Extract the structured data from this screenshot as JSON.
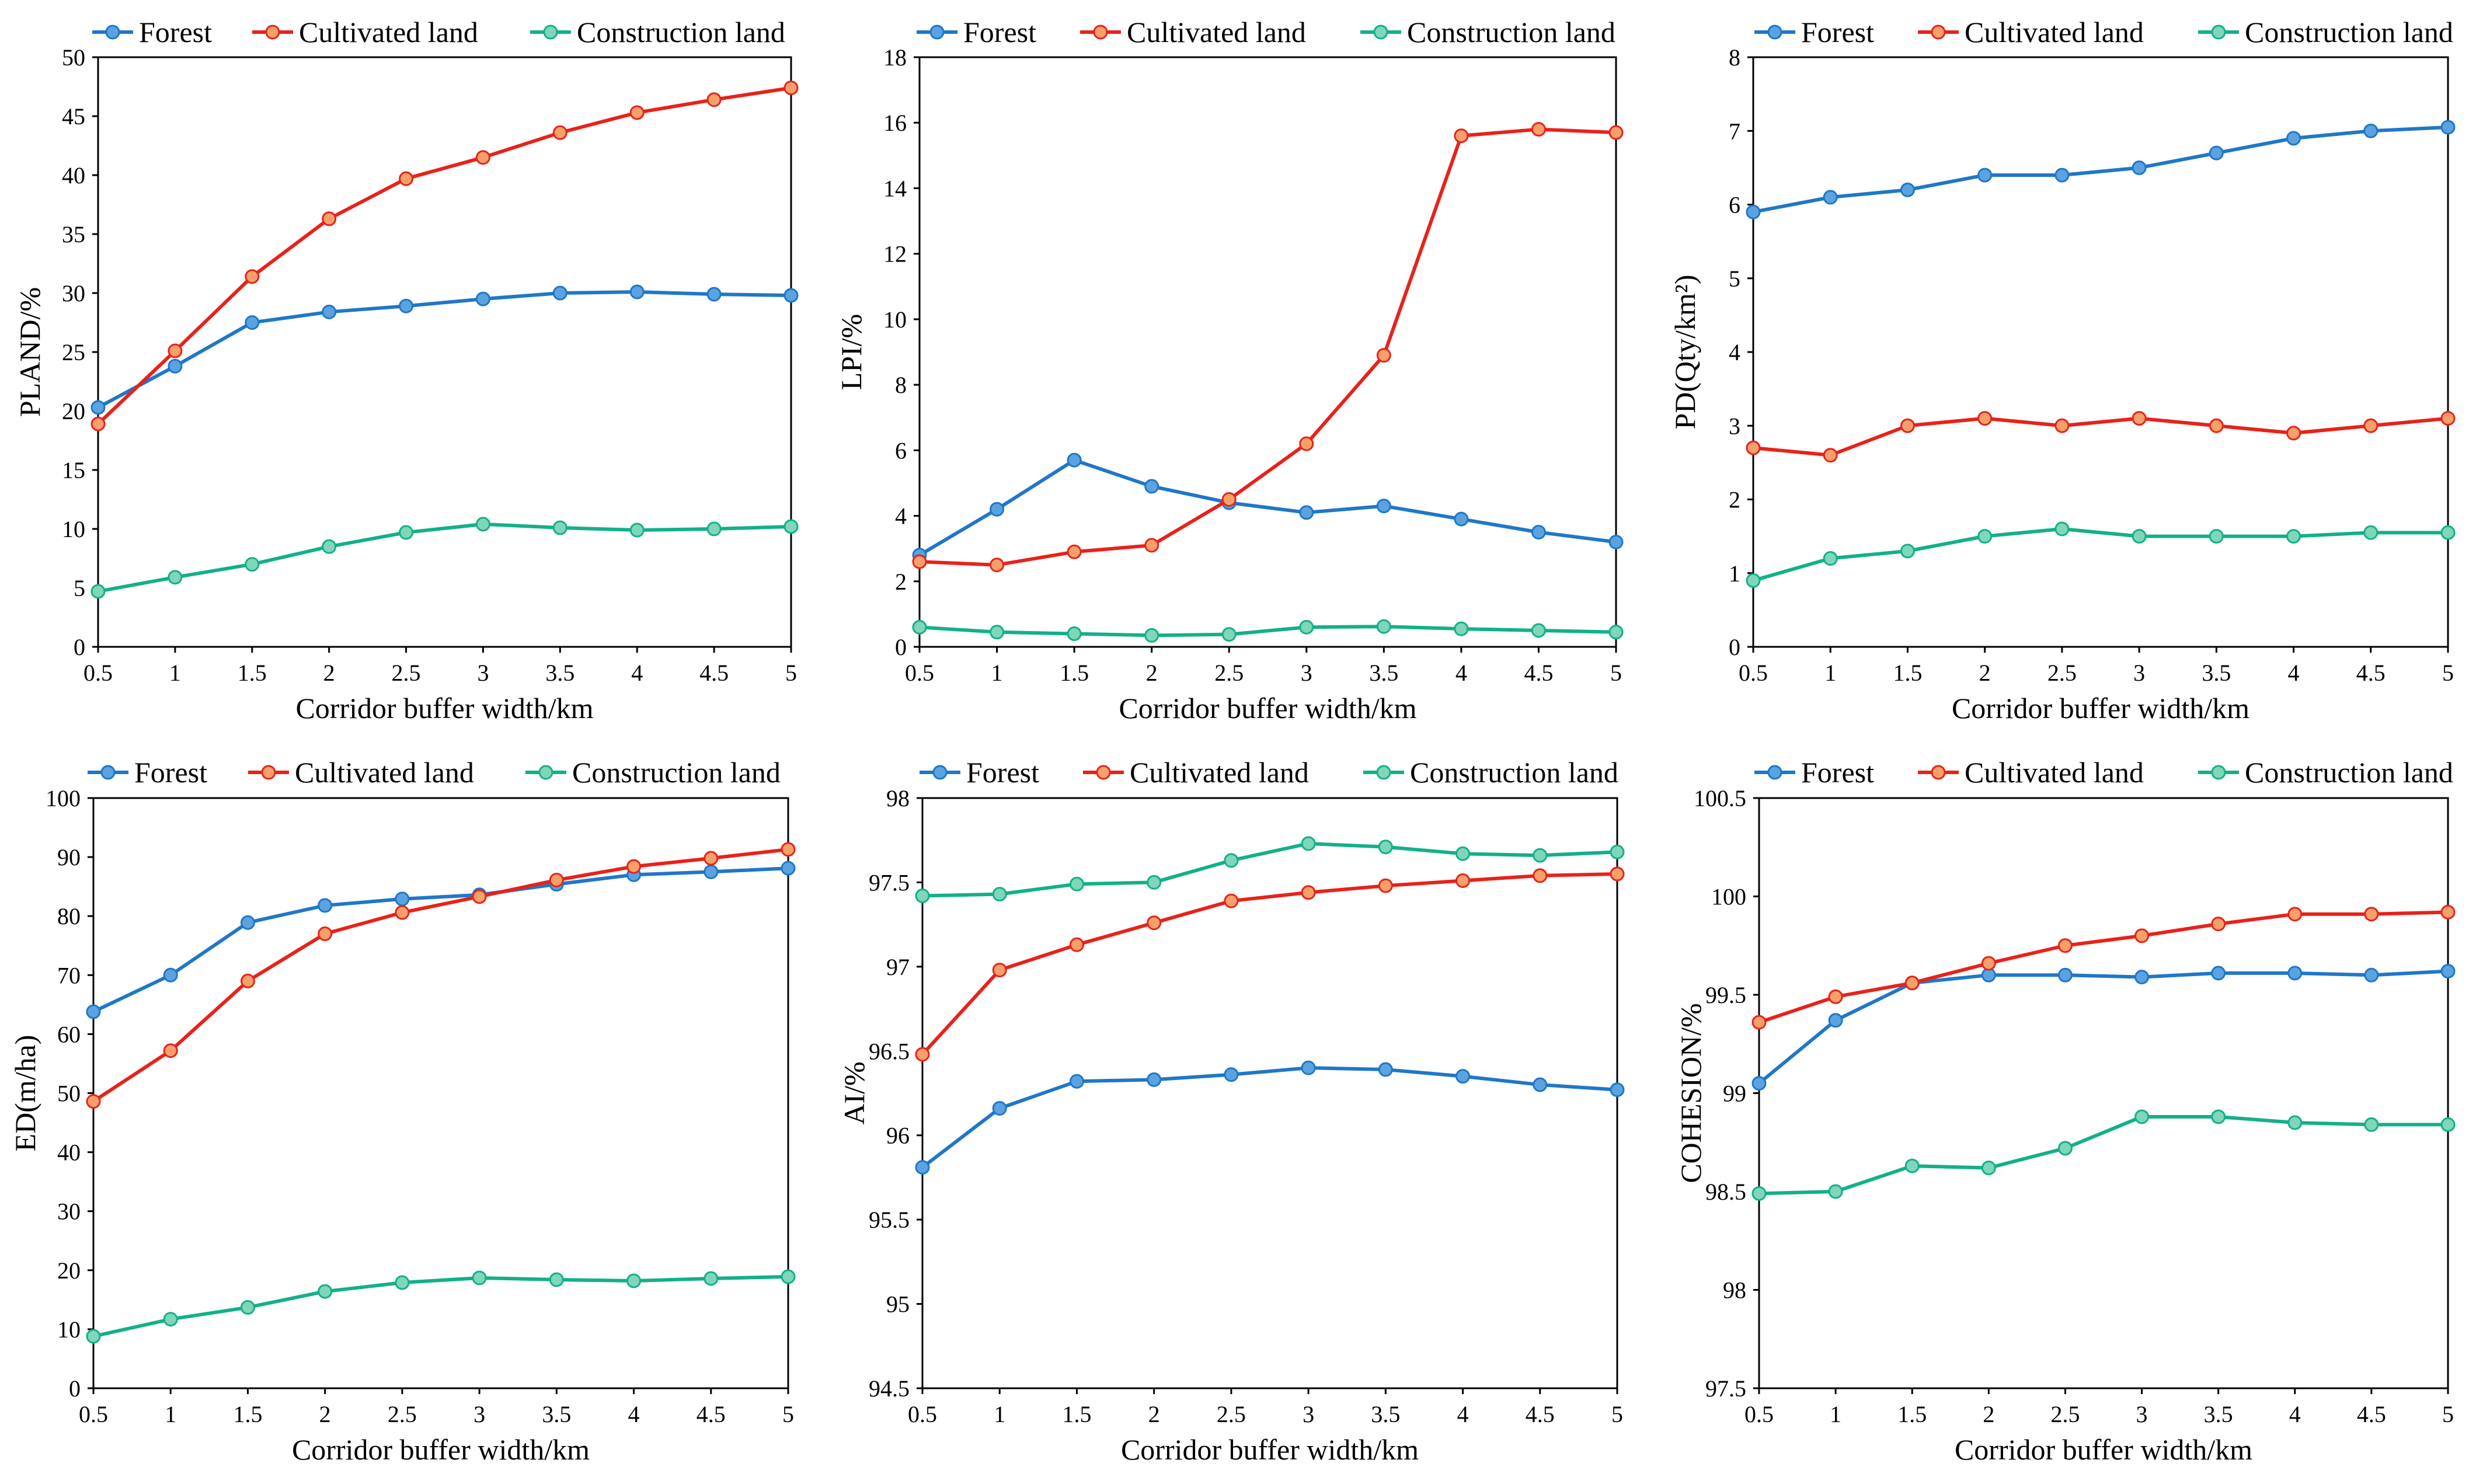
{
  "colors": {
    "forest": "#1F77C8",
    "forest_fill": "#5BA3E0",
    "cultivated": "#E8221A",
    "cultivated_fill": "#F7A06A",
    "construction": "#13B08A",
    "construction_fill": "#7FD6B8",
    "axis": "#000000"
  },
  "chart_data": [
    {
      "type": "line",
      "xlabel": "Corridor buffer width/km",
      "ylabel": "PLAND/%",
      "categories": [
        "0.5",
        "1",
        "1.5",
        "2",
        "2.5",
        "3",
        "3.5",
        "4",
        "4.5",
        "5"
      ],
      "ylim": [
        0,
        50
      ],
      "yticks": [
        "0",
        "5",
        "10",
        "15",
        "20",
        "25",
        "30",
        "35",
        "40",
        "45",
        "50"
      ],
      "legend": "top",
      "series": [
        {
          "name": "Forest",
          "values": [
            20.3,
            23.8,
            27.5,
            28.4,
            28.9,
            29.5,
            30.0,
            30.1,
            29.9,
            29.8
          ]
        },
        {
          "name": "Cultivated land",
          "values": [
            18.9,
            25.1,
            31.4,
            36.3,
            39.7,
            41.5,
            43.6,
            45.3,
            46.4,
            47.4
          ]
        },
        {
          "name": "Construction land",
          "values": [
            4.7,
            5.9,
            7.0,
            8.5,
            9.7,
            10.4,
            10.1,
            9.9,
            10.0,
            10.2
          ]
        }
      ]
    },
    {
      "type": "line",
      "xlabel": "Corridor buffer width/km",
      "ylabel": "LPI/%",
      "categories": [
        "0.5",
        "1",
        "1.5",
        "2",
        "2.5",
        "3",
        "3.5",
        "4",
        "4.5",
        "5"
      ],
      "ylim": [
        0,
        18
      ],
      "yticks": [
        "0",
        "2",
        "4",
        "6",
        "8",
        "10",
        "12",
        "14",
        "16",
        "18"
      ],
      "legend": "top",
      "series": [
        {
          "name": "Forest",
          "values": [
            2.8,
            4.2,
            5.7,
            4.9,
            4.4,
            4.1,
            4.3,
            3.9,
            3.5,
            3.2
          ]
        },
        {
          "name": "Cultivated land",
          "values": [
            2.6,
            2.5,
            2.9,
            3.1,
            4.5,
            6.2,
            8.9,
            15.6,
            15.8,
            15.7
          ]
        },
        {
          "name": "Construction land",
          "values": [
            0.6,
            0.45,
            0.4,
            0.35,
            0.38,
            0.6,
            0.62,
            0.55,
            0.5,
            0.45
          ]
        }
      ]
    },
    {
      "type": "line",
      "xlabel": "Corridor buffer width/km",
      "ylabel": "PD(Qty/km²)",
      "categories": [
        "0.5",
        "1",
        "1.5",
        "2",
        "2.5",
        "3",
        "3.5",
        "4",
        "4.5",
        "5"
      ],
      "ylim": [
        0,
        8
      ],
      "yticks": [
        "0",
        "1",
        "2",
        "3",
        "4",
        "5",
        "6",
        "7",
        "8"
      ],
      "legend": "top",
      "series": [
        {
          "name": "Forest",
          "values": [
            5.9,
            6.1,
            6.2,
            6.4,
            6.4,
            6.5,
            6.7,
            6.9,
            7.0,
            7.05
          ]
        },
        {
          "name": "Cultivated land",
          "values": [
            2.7,
            2.6,
            3.0,
            3.1,
            3.0,
            3.1,
            3.0,
            2.9,
            3.0,
            3.1
          ]
        },
        {
          "name": "Construction land",
          "values": [
            0.9,
            1.2,
            1.3,
            1.5,
            1.6,
            1.5,
            1.5,
            1.5,
            1.55,
            1.55
          ]
        }
      ]
    },
    {
      "type": "line",
      "xlabel": "Corridor buffer width/km",
      "ylabel": "ED(m/ha)",
      "categories": [
        "0.5",
        "1",
        "1.5",
        "2",
        "2.5",
        "3",
        "3.5",
        "4",
        "4.5",
        "5"
      ],
      "ylim": [
        0,
        100
      ],
      "yticks": [
        "0",
        "10",
        "20",
        "30",
        "40",
        "50",
        "60",
        "70",
        "80",
        "90",
        "100"
      ],
      "legend": "top",
      "series": [
        {
          "name": "Forest",
          "values": [
            63.8,
            70.0,
            78.9,
            81.8,
            82.9,
            83.6,
            85.4,
            87.0,
            87.5,
            88.1
          ]
        },
        {
          "name": "Cultivated land",
          "values": [
            48.6,
            57.2,
            69.0,
            77.0,
            80.6,
            83.3,
            86.1,
            88.4,
            89.8,
            91.3
          ]
        },
        {
          "name": "Construction land",
          "values": [
            8.8,
            11.7,
            13.7,
            16.4,
            17.9,
            18.7,
            18.4,
            18.2,
            18.6,
            18.9
          ]
        }
      ]
    },
    {
      "type": "line",
      "xlabel": "Corridor buffer width/km",
      "ylabel": "AI/%",
      "categories": [
        "0.5",
        "1",
        "1.5",
        "2",
        "2.5",
        "3",
        "3.5",
        "4",
        "4.5",
        "5"
      ],
      "ylim": [
        94.5,
        98
      ],
      "yticks": [
        "94.5",
        "95",
        "95.5",
        "96",
        "96.5",
        "97",
        "97.5",
        "98"
      ],
      "legend": "top",
      "series": [
        {
          "name": "Forest",
          "values": [
            95.81,
            96.16,
            96.32,
            96.33,
            96.36,
            96.4,
            96.39,
            96.35,
            96.3,
            96.27
          ]
        },
        {
          "name": "Cultivated land",
          "values": [
            96.48,
            96.98,
            97.13,
            97.26,
            97.39,
            97.44,
            97.48,
            97.51,
            97.54,
            97.55
          ]
        },
        {
          "name": "Construction land",
          "values": [
            97.42,
            97.43,
            97.49,
            97.5,
            97.63,
            97.73,
            97.71,
            97.67,
            97.66,
            97.68
          ]
        }
      ]
    },
    {
      "type": "line",
      "xlabel": "Corridor buffer width/km",
      "ylabel": "COHESION/%",
      "categories": [
        "0.5",
        "1",
        "1.5",
        "2",
        "2.5",
        "3",
        "3.5",
        "4",
        "4.5",
        "5"
      ],
      "ylim": [
        97.5,
        100.5
      ],
      "yticks": [
        "97.5",
        "98",
        "98.5",
        "99",
        "99.5",
        "100",
        "100.5"
      ],
      "legend": "top",
      "series": [
        {
          "name": "Forest",
          "values": [
            99.05,
            99.37,
            99.56,
            99.6,
            99.6,
            99.59,
            99.61,
            99.61,
            99.6,
            99.62
          ]
        },
        {
          "name": "Cultivated land",
          "values": [
            99.36,
            99.49,
            99.56,
            99.66,
            99.75,
            99.8,
            99.86,
            99.91,
            99.91,
            99.92
          ]
        },
        {
          "name": "Construction land",
          "values": [
            98.49,
            98.5,
            98.63,
            98.62,
            98.72,
            98.88,
            98.88,
            98.85,
            98.84,
            98.84
          ]
        }
      ]
    }
  ]
}
